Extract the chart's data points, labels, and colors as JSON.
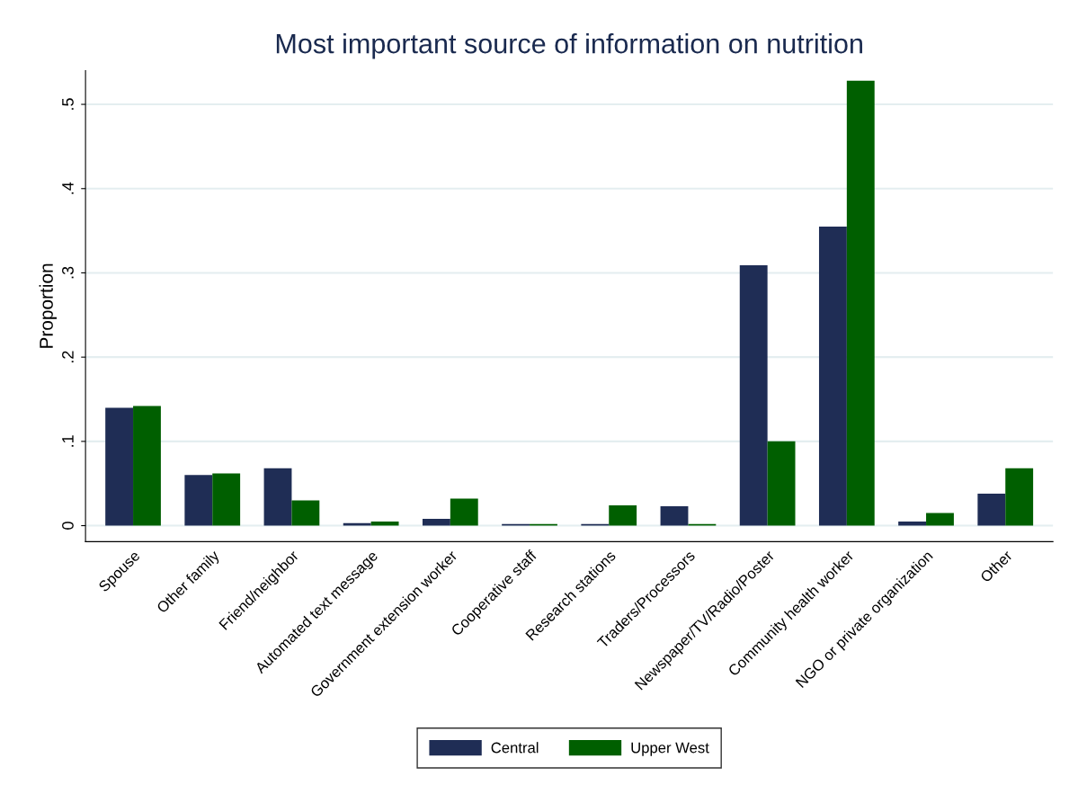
{
  "chart_data": {
    "type": "bar",
    "title": "Most important source of information on nutrition",
    "ylabel": "Proportion",
    "categories": [
      "Spouse",
      "Other family",
      "Friend/neighbor",
      "Automated text message",
      "Government extension worker",
      "Cooperative staff",
      "Research stations",
      "Traders/Processors",
      "Newspaper/TV/Radio/Poster",
      "Community health worker",
      "NGO or private organization",
      "Other"
    ],
    "series": [
      {
        "name": "Central",
        "color": "#1f2d55",
        "values": [
          0.14,
          0.06,
          0.068,
          0.003,
          0.008,
          0.002,
          0.002,
          0.023,
          0.309,
          0.355,
          0.005,
          0.038
        ]
      },
      {
        "name": "Upper West",
        "color": "#005f00",
        "values": [
          0.142,
          0.062,
          0.03,
          0.005,
          0.032,
          0.002,
          0.024,
          0.002,
          0.1,
          0.528,
          0.015,
          0.068
        ]
      }
    ],
    "ylim": [
      -0.019,
      0.54
    ],
    "yticks": [
      0,
      {
        "value": 0.1,
        "label": ".1"
      },
      {
        "value": 0.2,
        "label": ".2"
      },
      {
        "value": 0.3,
        "label": ".3"
      },
      {
        "value": 0.4,
        "label": ".4"
      },
      {
        "value": 0.5,
        "label": ".5"
      }
    ],
    "grid": "y",
    "legend": "bottom"
  }
}
